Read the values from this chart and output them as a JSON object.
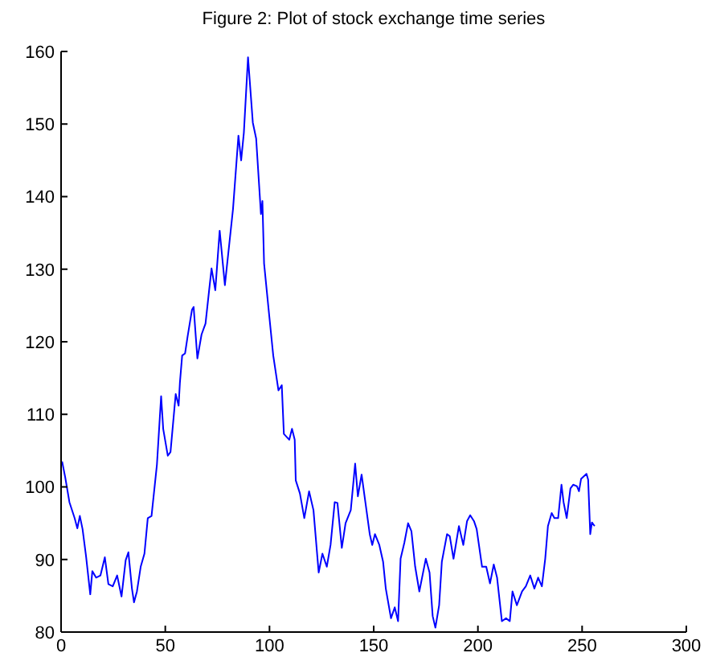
{
  "chart_data": {
    "type": "line",
    "title": "Figure 2: Plot of stock exchange time series",
    "xlim": [
      0,
      300
    ],
    "xticks": [
      0,
      50,
      100,
      150,
      200,
      250,
      300
    ],
    "ylim": [
      80,
      160
    ],
    "yticks": [
      80,
      90,
      100,
      110,
      120,
      130,
      140,
      150,
      160
    ],
    "grid": false,
    "legend": false,
    "marker": "none",
    "line_style": "solid",
    "series": [
      {
        "color": "#0000ff",
        "x": [
          0.5,
          2,
          4,
          6.5,
          7.8,
          9,
          10.3,
          12,
          14,
          15,
          16.8,
          18.9,
          21,
          22.7,
          24.8,
          26.9,
          29,
          31,
          32.3,
          34,
          35,
          36.4,
          38.2,
          40,
          41.6,
          43.4,
          46,
          48,
          49,
          51.2,
          52.5,
          55,
          56.4,
          57,
          58.1,
          59.5,
          60.7,
          62.8,
          63.6,
          65.4,
          67.4,
          69.3,
          71,
          72.2,
          74,
          76.1,
          78.6,
          82.5,
          85.1,
          86.4,
          87.7,
          89.7,
          92,
          93.6,
          95.9,
          96.6,
          97.4,
          99.7,
          101.8,
          104.3,
          105.9,
          106.9,
          109.5,
          110.8,
          112.1,
          112.6,
          114.6,
          116.7,
          119,
          121.1,
          123.6,
          125.4,
          127.5,
          129.3,
          131.3,
          132.6,
          134.7,
          136.5,
          139,
          141.1,
          142.4,
          144.2,
          146,
          148.1,
          149.3,
          150.6,
          152.7,
          154.5,
          155.8,
          158.3,
          160.1,
          161.7,
          162.9,
          164.7,
          166.5,
          168.1,
          169.9,
          171.9,
          175,
          176.8,
          178.3,
          179.6,
          181.4,
          182.7,
          185.2,
          186.5,
          188.3,
          190.9,
          193,
          194.8,
          196.3,
          198.1,
          199.4,
          202,
          204,
          205.8,
          207.6,
          209.2,
          211.5,
          213.5,
          215.3,
          216.6,
          218.7,
          221.2,
          223,
          225.1,
          227.1,
          228.9,
          230.7,
          232.3,
          233.6,
          235.4,
          236.7,
          238.5,
          240.1,
          241.1,
          242.6,
          244.4,
          245.7,
          247.5,
          248.5,
          249.5,
          252.1,
          252.9,
          253.9,
          254.7,
          256
        ],
        "values": [
          103.5,
          101.3,
          97.9,
          95.7,
          94.3,
          96,
          94.2,
          90.4,
          85.2,
          88.4,
          87.5,
          87.8,
          90.3,
          86.6,
          86.3,
          87.8,
          84.9,
          89.9,
          91,
          86,
          84.1,
          85.6,
          89,
          90.8,
          95.7,
          96,
          103.1,
          112.5,
          108,
          104.3,
          104.8,
          112.8,
          111.2,
          114.3,
          118.1,
          118.4,
          120.7,
          124.4,
          124.8,
          117.7,
          121,
          122.5,
          127,
          130.1,
          127.1,
          135.3,
          127.8,
          138.3,
          148.4,
          145,
          148.8,
          159.2,
          150.2,
          148,
          137.6,
          139.4,
          130.8,
          124.1,
          118.1,
          113.3,
          114,
          107.3,
          106.5,
          108,
          106.5,
          100.9,
          99.1,
          95.7,
          99.4,
          96.8,
          88.2,
          90.8,
          89,
          92,
          97.9,
          97.8,
          91.6,
          95,
          96.8,
          103.2,
          98.7,
          101.7,
          97.9,
          93.5,
          92,
          93.5,
          92,
          89.7,
          86,
          81.9,
          83.4,
          81.5,
          90.1,
          92.3,
          95,
          93.9,
          89,
          85.6,
          90.1,
          88.2,
          82.2,
          80.6,
          83.7,
          89.7,
          93.5,
          93.2,
          90.1,
          94.6,
          92,
          95.3,
          96.1,
          95.3,
          94.2,
          89,
          89,
          86.7,
          89.3,
          87.5,
          81.5,
          81.9,
          81.5,
          85.6,
          83.7,
          85.6,
          86.3,
          87.8,
          86,
          87.5,
          86.3,
          90.1,
          94.6,
          96.4,
          95.7,
          95.7,
          100.3,
          97.9,
          95.7,
          99.8,
          100.3,
          100.1,
          99.4,
          101.1,
          101.8,
          101,
          93.5,
          95.1,
          94.6
        ]
      }
    ]
  }
}
